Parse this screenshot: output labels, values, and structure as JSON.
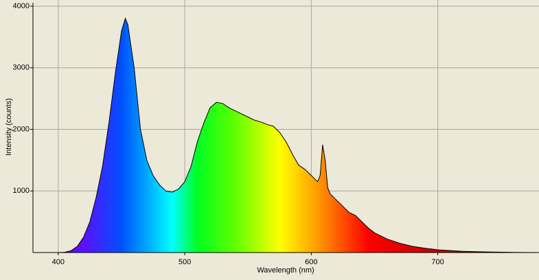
{
  "chart_data": {
    "type": "area",
    "x_label": "Wavelength (nm)",
    "y_label": "Intensity (counts)",
    "x": [
      380,
      390,
      400,
      405,
      410,
      415,
      420,
      425,
      430,
      435,
      440,
      445,
      450,
      453,
      455,
      460,
      465,
      470,
      475,
      480,
      485,
      490,
      495,
      500,
      505,
      510,
      515,
      520,
      525,
      530,
      535,
      540,
      545,
      550,
      555,
      560,
      565,
      570,
      575,
      580,
      585,
      590,
      595,
      600,
      605,
      607,
      609,
      611,
      613,
      615,
      620,
      625,
      630,
      635,
      640,
      645,
      650,
      660,
      670,
      680,
      690,
      700,
      720,
      740,
      760,
      780
    ],
    "values": [
      0,
      0,
      0,
      5,
      30,
      100,
      250,
      500,
      900,
      1400,
      2100,
      2900,
      3600,
      3800,
      3700,
      3000,
      2000,
      1500,
      1250,
      1100,
      1000,
      980,
      1030,
      1150,
      1400,
      1800,
      2100,
      2350,
      2440,
      2420,
      2350,
      2300,
      2250,
      2200,
      2150,
      2120,
      2080,
      2050,
      1950,
      1800,
      1600,
      1420,
      1350,
      1250,
      1150,
      1250,
      1750,
      1500,
      1050,
      950,
      850,
      750,
      650,
      600,
      500,
      400,
      320,
      220,
      150,
      100,
      70,
      45,
      20,
      10,
      3,
      0
    ],
    "xlim": [
      380,
      780
    ],
    "ylim": [
      0,
      4000
    ],
    "xticks": [
      400,
      500,
      600,
      700
    ],
    "yticks": [
      1000,
      2000,
      3000,
      4000
    ],
    "grid": true,
    "line_color": "#000000"
  }
}
